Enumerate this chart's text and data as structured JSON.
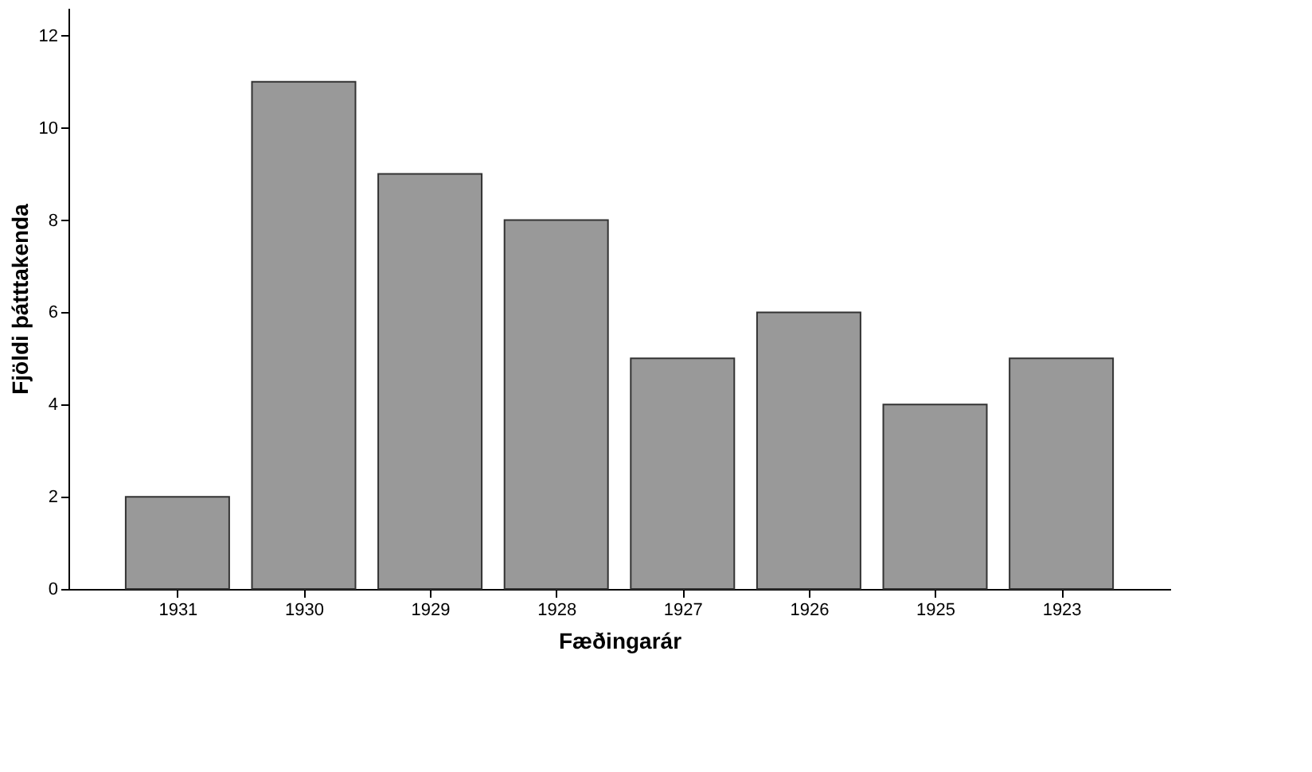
{
  "chart_data": {
    "type": "bar",
    "xlabel": "Fæðingarár",
    "ylabel": "Fjöldi þátttakenda",
    "categories": [
      "1931",
      "1930",
      "1929",
      "1928",
      "1927",
      "1926",
      "1925",
      "1923"
    ],
    "values": [
      2,
      11,
      9,
      8,
      5,
      6,
      4,
      5
    ],
    "color": "#999999",
    "ylim": [
      0,
      12.6
    ],
    "yticks": [
      0,
      2,
      4,
      6,
      8,
      10,
      12
    ],
    "grid": false
  }
}
